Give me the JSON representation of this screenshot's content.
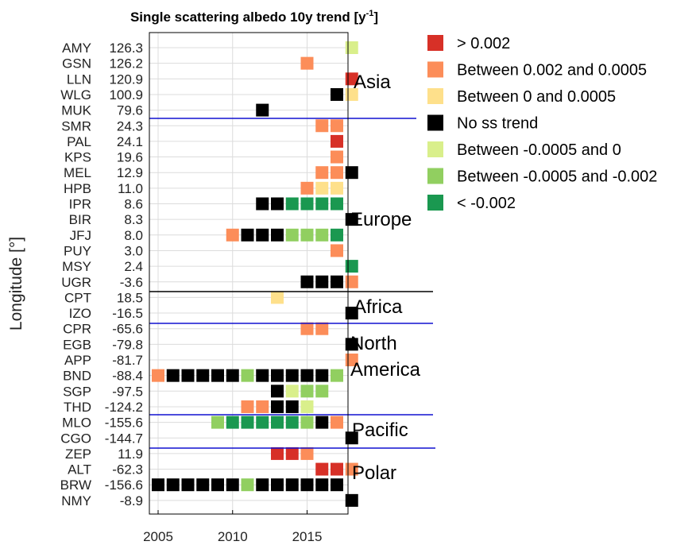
{
  "chart_data": {
    "type": "heatmap",
    "title": "Single scattering albedo 10y trend [y",
    "title_sup": "-1",
    "title_end": "]",
    "ylabel": "Longitude [°]",
    "x_ticks": [
      "2005",
      "2010",
      "2015"
    ],
    "xlim": [
      2005,
      2018
    ],
    "grid": true,
    "legend_position": "right",
    "categories": {
      "gt_0002": {
        "label": "> 0.002",
        "color": "#d73027"
      },
      "b_0002_00005": {
        "label": "Between 0.002 and 0.0005",
        "color": "#fc8d59"
      },
      "b_0_00005": {
        "label": "Between 0 and 0.0005",
        "color": "#fee08b"
      },
      "no_trend": {
        "label": "No ss trend",
        "color": "#000000"
      },
      "b_m00005_0": {
        "label": "Between -0.0005 and 0",
        "color": "#d9ef8b"
      },
      "b_m00005_m0002": {
        "label": "Between -0.0005 and -0.002",
        "color": "#91cf60"
      },
      "lt_m0002": {
        "label": "< -0.002",
        "color": "#1a9850"
      }
    },
    "legend_order": [
      "gt_0002",
      "b_0002_00005",
      "b_0_00005",
      "no_trend",
      "b_m00005_0",
      "b_m00005_m0002",
      "lt_m0002"
    ],
    "regions": [
      {
        "label": "Asia"
      },
      {
        "label": "Europe"
      },
      {
        "label": "Africa"
      },
      {
        "label": "North\nAmerica"
      },
      {
        "label": "Pacific"
      },
      {
        "label": "Polar"
      }
    ],
    "stations": [
      {
        "code": "AMY",
        "lon": "126.3",
        "cells": [
          {
            "year": 2018,
            "cat": "b_m00005_0"
          }
        ]
      },
      {
        "code": "GSN",
        "lon": "126.2",
        "cells": [
          {
            "year": 2015,
            "cat": "b_0002_00005"
          }
        ]
      },
      {
        "code": "LLN",
        "lon": "120.9",
        "cells": [
          {
            "year": 2018,
            "cat": "gt_0002"
          }
        ]
      },
      {
        "code": "WLG",
        "lon": "100.9",
        "cells": [
          {
            "year": 2017,
            "cat": "no_trend"
          },
          {
            "year": 2018,
            "cat": "b_0_00005"
          }
        ]
      },
      {
        "code": "MUK",
        "lon": "79.6",
        "cells": [
          {
            "year": 2012,
            "cat": "no_trend"
          }
        ]
      },
      {
        "code": "SMR",
        "lon": "24.3",
        "cells": [
          {
            "year": 2016,
            "cat": "b_0002_00005"
          },
          {
            "year": 2017,
            "cat": "b_0002_00005"
          }
        ]
      },
      {
        "code": "PAL",
        "lon": "24.1",
        "cells": [
          {
            "year": 2017,
            "cat": "gt_0002"
          }
        ]
      },
      {
        "code": "KPS",
        "lon": "19.6",
        "cells": [
          {
            "year": 2017,
            "cat": "b_0002_00005"
          }
        ]
      },
      {
        "code": "MEL",
        "lon": "12.9",
        "cells": [
          {
            "year": 2016,
            "cat": "b_0002_00005"
          },
          {
            "year": 2017,
            "cat": "b_0002_00005"
          },
          {
            "year": 2018,
            "cat": "no_trend"
          }
        ]
      },
      {
        "code": "HPB",
        "lon": "11.0",
        "cells": [
          {
            "year": 2015,
            "cat": "b_0002_00005"
          },
          {
            "year": 2016,
            "cat": "b_0_00005"
          },
          {
            "year": 2017,
            "cat": "b_0_00005"
          }
        ]
      },
      {
        "code": "IPR",
        "lon": "8.6",
        "cells": [
          {
            "year": 2012,
            "cat": "no_trend"
          },
          {
            "year": 2013,
            "cat": "no_trend"
          },
          {
            "year": 2014,
            "cat": "lt_m0002"
          },
          {
            "year": 2015,
            "cat": "lt_m0002"
          },
          {
            "year": 2016,
            "cat": "lt_m0002"
          },
          {
            "year": 2017,
            "cat": "lt_m0002"
          }
        ]
      },
      {
        "code": "BIR",
        "lon": "8.3",
        "cells": [
          {
            "year": 2018,
            "cat": "no_trend"
          }
        ]
      },
      {
        "code": "JFJ",
        "lon": "8.0",
        "cells": [
          {
            "year": 2010,
            "cat": "b_0002_00005"
          },
          {
            "year": 2011,
            "cat": "no_trend"
          },
          {
            "year": 2012,
            "cat": "no_trend"
          },
          {
            "year": 2013,
            "cat": "no_trend"
          },
          {
            "year": 2014,
            "cat": "b_m00005_m0002"
          },
          {
            "year": 2015,
            "cat": "b_m00005_m0002"
          },
          {
            "year": 2016,
            "cat": "b_m00005_m0002"
          },
          {
            "year": 2017,
            "cat": "lt_m0002"
          }
        ]
      },
      {
        "code": "PUY",
        "lon": "3.0",
        "cells": [
          {
            "year": 2017,
            "cat": "b_0002_00005"
          }
        ]
      },
      {
        "code": "MSY",
        "lon": "2.4",
        "cells": [
          {
            "year": 2018,
            "cat": "lt_m0002"
          }
        ]
      },
      {
        "code": "UGR",
        "lon": "-3.6",
        "cells": [
          {
            "year": 2015,
            "cat": "no_trend"
          },
          {
            "year": 2016,
            "cat": "no_trend"
          },
          {
            "year": 2017,
            "cat": "no_trend"
          },
          {
            "year": 2018,
            "cat": "b_0002_00005"
          }
        ]
      },
      {
        "code": "CPT",
        "lon": "18.5",
        "cells": [
          {
            "year": 2013,
            "cat": "b_0_00005"
          }
        ]
      },
      {
        "code": "IZO",
        "lon": "-16.5",
        "cells": [
          {
            "year": 2018,
            "cat": "no_trend"
          }
        ]
      },
      {
        "code": "CPR",
        "lon": "-65.6",
        "cells": [
          {
            "year": 2015,
            "cat": "b_0002_00005"
          },
          {
            "year": 2016,
            "cat": "b_0002_00005"
          }
        ]
      },
      {
        "code": "EGB",
        "lon": "-79.8",
        "cells": [
          {
            "year": 2018,
            "cat": "no_trend"
          }
        ]
      },
      {
        "code": "APP",
        "lon": "-81.7",
        "cells": [
          {
            "year": 2018,
            "cat": "b_0002_00005"
          }
        ]
      },
      {
        "code": "BND",
        "lon": "-88.4",
        "cells": [
          {
            "year": 2005,
            "cat": "b_0002_00005"
          },
          {
            "year": 2006,
            "cat": "no_trend"
          },
          {
            "year": 2007,
            "cat": "no_trend"
          },
          {
            "year": 2008,
            "cat": "no_trend"
          },
          {
            "year": 2009,
            "cat": "no_trend"
          },
          {
            "year": 2010,
            "cat": "no_trend"
          },
          {
            "year": 2011,
            "cat": "b_m00005_m0002"
          },
          {
            "year": 2012,
            "cat": "no_trend"
          },
          {
            "year": 2013,
            "cat": "no_trend"
          },
          {
            "year": 2014,
            "cat": "no_trend"
          },
          {
            "year": 2015,
            "cat": "no_trend"
          },
          {
            "year": 2016,
            "cat": "no_trend"
          },
          {
            "year": 2017,
            "cat": "b_m00005_m0002"
          }
        ]
      },
      {
        "code": "SGP",
        "lon": "-97.5",
        "cells": [
          {
            "year": 2013,
            "cat": "no_trend"
          },
          {
            "year": 2014,
            "cat": "b_m00005_0"
          },
          {
            "year": 2015,
            "cat": "b_m00005_m0002"
          },
          {
            "year": 2016,
            "cat": "b_m00005_m0002"
          }
        ]
      },
      {
        "code": "THD",
        "lon": "-124.2",
        "cells": [
          {
            "year": 2011,
            "cat": "b_0002_00005"
          },
          {
            "year": 2012,
            "cat": "b_0002_00005"
          },
          {
            "year": 2013,
            "cat": "no_trend"
          },
          {
            "year": 2014,
            "cat": "no_trend"
          },
          {
            "year": 2015,
            "cat": "b_m00005_0"
          }
        ]
      },
      {
        "code": "MLO",
        "lon": "-155.6",
        "cells": [
          {
            "year": 2009,
            "cat": "b_m00005_m0002"
          },
          {
            "year": 2010,
            "cat": "lt_m0002"
          },
          {
            "year": 2011,
            "cat": "lt_m0002"
          },
          {
            "year": 2012,
            "cat": "lt_m0002"
          },
          {
            "year": 2013,
            "cat": "lt_m0002"
          },
          {
            "year": 2014,
            "cat": "lt_m0002"
          },
          {
            "year": 2015,
            "cat": "b_m00005_m0002"
          },
          {
            "year": 2016,
            "cat": "no_trend"
          },
          {
            "year": 2017,
            "cat": "b_0002_00005"
          }
        ]
      },
      {
        "code": "CGO",
        "lon": "-144.7",
        "cells": [
          {
            "year": 2018,
            "cat": "no_trend"
          }
        ]
      },
      {
        "code": "ZEP",
        "lon": "11.9",
        "cells": [
          {
            "year": 2013,
            "cat": "gt_0002"
          },
          {
            "year": 2014,
            "cat": "gt_0002"
          },
          {
            "year": 2015,
            "cat": "b_0002_00005"
          }
        ]
      },
      {
        "code": "ALT",
        "lon": "-62.3",
        "cells": [
          {
            "year": 2016,
            "cat": "gt_0002"
          },
          {
            "year": 2017,
            "cat": "gt_0002"
          },
          {
            "year": 2018,
            "cat": "b_0002_00005"
          }
        ]
      },
      {
        "code": "BRW",
        "lon": "-156.6",
        "cells": [
          {
            "year": 2005,
            "cat": "no_trend"
          },
          {
            "year": 2006,
            "cat": "no_trend"
          },
          {
            "year": 2007,
            "cat": "no_trend"
          },
          {
            "year": 2008,
            "cat": "no_trend"
          },
          {
            "year": 2009,
            "cat": "no_trend"
          },
          {
            "year": 2010,
            "cat": "no_trend"
          },
          {
            "year": 2011,
            "cat": "b_m00005_m0002"
          },
          {
            "year": 2012,
            "cat": "no_trend"
          },
          {
            "year": 2013,
            "cat": "no_trend"
          },
          {
            "year": 2014,
            "cat": "no_trend"
          },
          {
            "year": 2015,
            "cat": "no_trend"
          },
          {
            "year": 2016,
            "cat": "no_trend"
          },
          {
            "year": 2017,
            "cat": "no_trend"
          }
        ]
      },
      {
        "code": "NMY",
        "lon": "-8.9",
        "cells": [
          {
            "year": 2018,
            "cat": "no_trend"
          }
        ]
      }
    ]
  }
}
